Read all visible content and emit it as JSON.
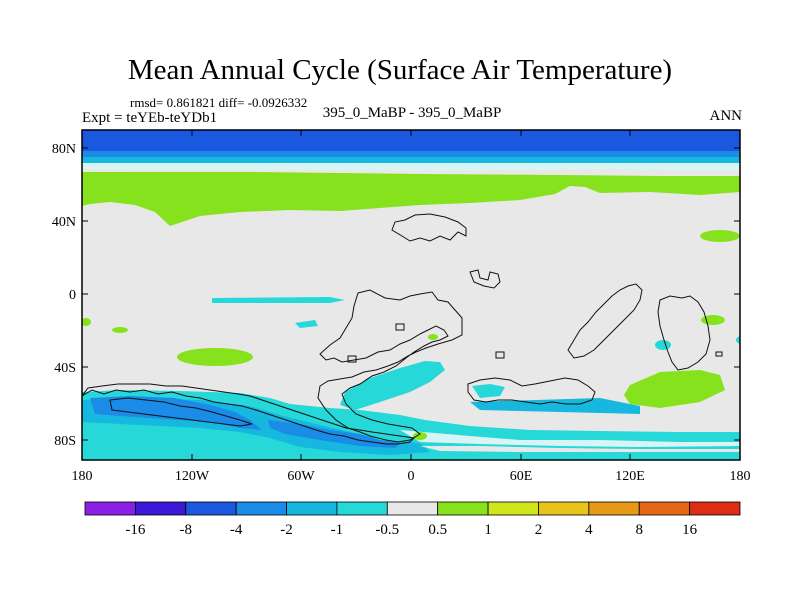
{
  "title": "Mean Annual Cycle (Surface Air Temperature)",
  "stats": "rmsd= 0.861821 diff= -0.0926332",
  "expt": "Expt = teYEb-teYDb1",
  "center_label": "395_0_MaBP - 395_0_MaBP",
  "season": "ANN",
  "map": {
    "lat_ticks": [
      "80N",
      "40N",
      "0",
      "40S",
      "80S"
    ],
    "lon_ticks": [
      "180",
      "120W",
      "60W",
      "0",
      "60E",
      "120E",
      "180"
    ]
  },
  "colorbar": {
    "colors": [
      "#8b1fe6",
      "#3b19d6",
      "#1b58e0",
      "#1a8be6",
      "#16b8e0",
      "#27d8d8",
      "#e8e8e8",
      "#86e21c",
      "#d0e51b",
      "#e7c41a",
      "#e89817",
      "#e46815",
      "#dd2d12"
    ],
    "labels": [
      "-16",
      "-8",
      "-4",
      "-2",
      "-1",
      "-0.5",
      "0.5",
      "1",
      "2",
      "4",
      "8",
      "16"
    ]
  },
  "palette": {
    "deep_blue": "#1b58e0",
    "mid_blue": "#1a8be6",
    "light_blue": "#16b8e0",
    "cyan": "#27d8d8",
    "pale": "#d8f4f4",
    "neutral": "#e8e8e8",
    "green": "#86e21c"
  }
}
